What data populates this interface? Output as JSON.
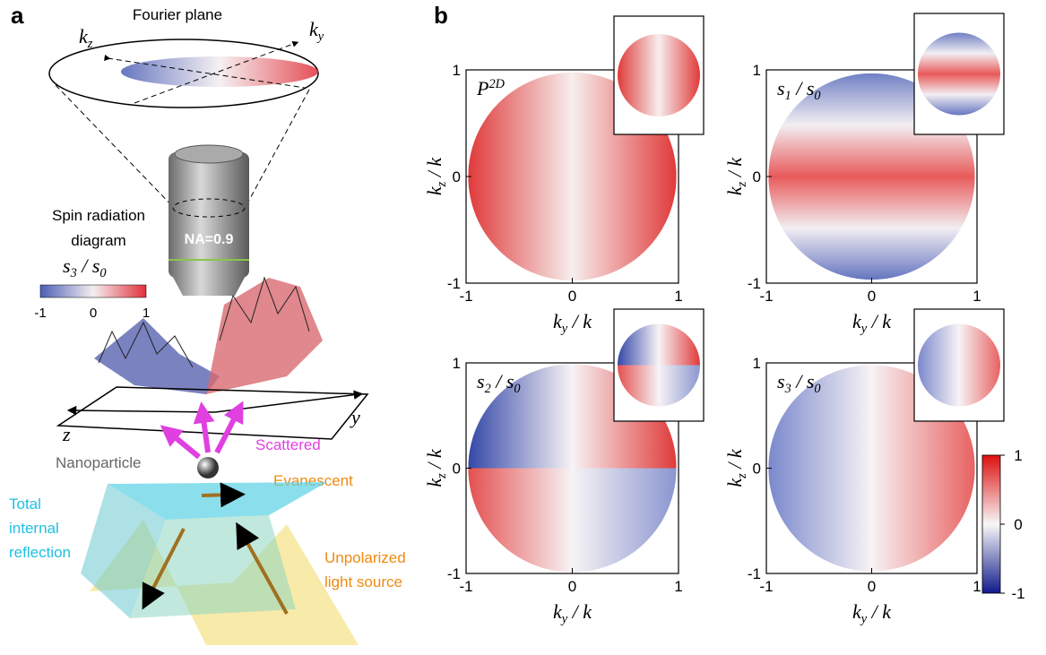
{
  "panel_a": {
    "label": "a",
    "fourier_plane": "Fourier plane",
    "kz": [
      {
        "text": "k"
      },
      {
        "sub": "z"
      }
    ],
    "ky": [
      {
        "text": "k"
      },
      {
        "sub": "y"
      }
    ],
    "objective": "NA=0.9",
    "spin_title": [
      "Spin radiation",
      "diagram"
    ],
    "colorbar_label": [
      {
        "text": "s"
      },
      {
        "sub": "3"
      },
      {
        "text": " / s"
      },
      {
        "sub": "0"
      }
    ],
    "colorbar_ticks": [
      -1,
      0,
      1
    ],
    "z": "z",
    "y": "y",
    "scattered": "Scattered",
    "nanoparticle": "Nanoparticle",
    "evanescent": "Evanescent",
    "tir": [
      "Total",
      "internal",
      "reflection"
    ],
    "source": [
      "Unpolarized",
      "light source"
    ]
  },
  "panel_b": {
    "label": "b",
    "xlabel": [
      {
        "text": "k"
      },
      {
        "sub": "y"
      },
      {
        "text": " / k"
      }
    ],
    "ylabel": [
      {
        "text": "k"
      },
      {
        "sub": "z"
      },
      {
        "text": " / k"
      }
    ],
    "xlim": [
      -1,
      1
    ],
    "ylim": [
      -1,
      1
    ],
    "xticks": [
      -1,
      0,
      1
    ],
    "yticks": [
      -1,
      0,
      1
    ],
    "plots": [
      {
        "title": [
          {
            "text": "P"
          },
          {
            "sup": "2D"
          }
        ]
      },
      {
        "title": [
          {
            "text": "s"
          },
          {
            "sub": "1"
          },
          {
            "text": " / s"
          },
          {
            "sub": "0"
          }
        ]
      },
      {
        "title": [
          {
            "text": "s"
          },
          {
            "sub": "2"
          },
          {
            "text": " / s"
          },
          {
            "sub": "0"
          }
        ]
      },
      {
        "title": [
          {
            "text": "s"
          },
          {
            "sub": "3"
          },
          {
            "text": " / s"
          },
          {
            "sub": "0"
          }
        ]
      }
    ],
    "colorbar_lim": [
      -1,
      1
    ],
    "colorbar_ticks": [
      -1,
      0,
      1
    ]
  }
}
